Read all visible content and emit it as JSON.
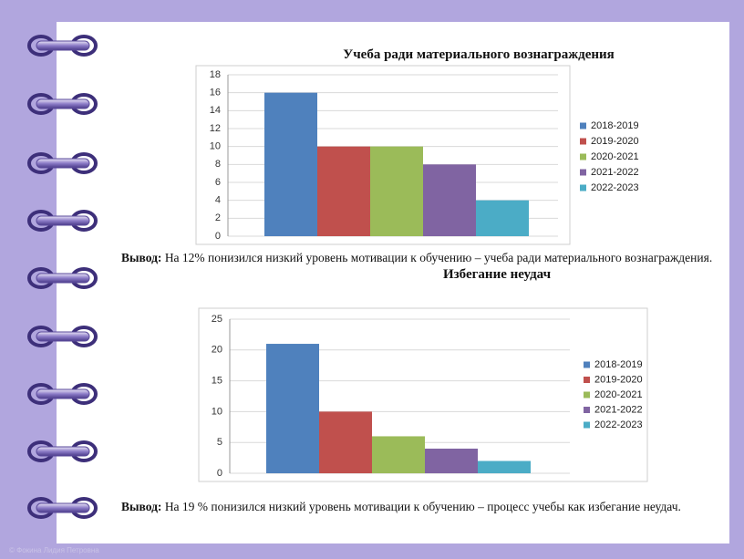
{
  "chart_data": [
    {
      "type": "bar",
      "title": "Учеба ради материального вознаграждения",
      "series": [
        {
          "name": "2018-2019",
          "color": "#4f81bd",
          "values": [
            16
          ]
        },
        {
          "name": "2019-2020",
          "color": "#c0504d",
          "values": [
            10
          ]
        },
        {
          "name": "2020-2021",
          "color": "#9bbb59",
          "values": [
            10
          ]
        },
        {
          "name": "2021-2022",
          "color": "#8064a2",
          "values": [
            8
          ]
        },
        {
          "name": "2022-2023",
          "color": "#4bacc6",
          "values": [
            4
          ]
        }
      ],
      "ylim": [
        0,
        18
      ],
      "yticks": [
        0,
        2,
        4,
        6,
        8,
        10,
        12,
        14,
        16,
        18
      ],
      "grid": true,
      "legend": "right",
      "conclusion": {
        "label": "Вывод:",
        "text": "На 12% понизился низкий уровень мотивации к обучению – учеба ради материального вознаграждения."
      }
    },
    {
      "type": "bar",
      "title": "Избегание неудач",
      "series": [
        {
          "name": "2018-2019",
          "color": "#4f81bd",
          "values": [
            21
          ]
        },
        {
          "name": "2019-2020",
          "color": "#c0504d",
          "values": [
            10
          ]
        },
        {
          "name": "2020-2021",
          "color": "#9bbb59",
          "values": [
            6
          ]
        },
        {
          "name": "2021-2022",
          "color": "#8064a2",
          "values": [
            4
          ]
        },
        {
          "name": "2022-2023",
          "color": "#4bacc6",
          "values": [
            2
          ]
        }
      ],
      "ylim": [
        0,
        25
      ],
      "yticks": [
        0,
        5,
        10,
        15,
        20,
        25
      ],
      "grid": true,
      "legend": "right",
      "conclusion": {
        "label": "Вывод:",
        "text": "На 19 %  понизился низкий уровень мотивации к обучению – процесс учебы как избегание неудач."
      }
    }
  ],
  "footer": "© Фокина Лидия Петровна"
}
